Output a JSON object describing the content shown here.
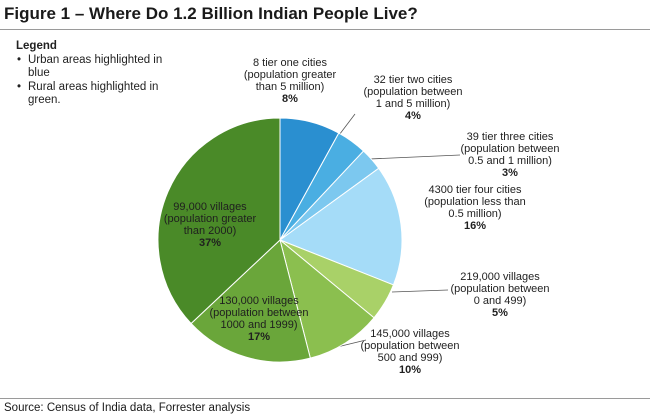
{
  "title": "Figure 1 – Where Do 1.2 Billion Indian People Live?",
  "legend": {
    "heading": "Legend",
    "items": [
      "Urban areas highlighted in blue",
      "Rural areas highlighted in green."
    ]
  },
  "source": "Source: Census of India data, Forrester analysis",
  "chart_data": {
    "type": "pie",
    "title": "Figure 1 – Where Do 1.2 Billion Indian People Live?",
    "slices": [
      {
        "label_lines": [
          "8 tier one cities",
          "(population greater",
          "than 5 million)"
        ],
        "value": 8,
        "value_label": "8%",
        "group": "urban",
        "color": "#2a8fd0"
      },
      {
        "label_lines": [
          "32 tier two cities",
          "(population between",
          "1 and 5 million)"
        ],
        "value": 4,
        "value_label": "4%",
        "group": "urban",
        "color": "#4aaee2"
      },
      {
        "label_lines": [
          "39 tier three cities",
          "(population between",
          "0.5 and 1 million)"
        ],
        "value": 3,
        "value_label": "3%",
        "group": "urban",
        "color": "#7cc8ef"
      },
      {
        "label_lines": [
          "4300 tier four cities",
          "(population less than",
          "0.5 million)"
        ],
        "value": 16,
        "value_label": "16%",
        "group": "urban",
        "color": "#a5dcf8"
      },
      {
        "label_lines": [
          "219,000 villages",
          "(population between",
          "0 and 499)"
        ],
        "value": 5,
        "value_label": "5%",
        "group": "rural",
        "color": "#a9d168"
      },
      {
        "label_lines": [
          "145,000 villages",
          "(population between",
          "500 and 999)"
        ],
        "value": 10,
        "value_label": "10%",
        "group": "rural",
        "color": "#8bbf4f"
      },
      {
        "label_lines": [
          "130,000 villages",
          "(population between",
          "1000 and 1999)"
        ],
        "value": 17,
        "value_label": "17%",
        "group": "rural",
        "color": "#6aa63a"
      },
      {
        "label_lines": [
          "99,000 villages",
          "(population greater",
          "than 2000)"
        ],
        "value": 37,
        "value_label": "37%",
        "group": "rural",
        "color": "#4a8a28"
      }
    ]
  }
}
